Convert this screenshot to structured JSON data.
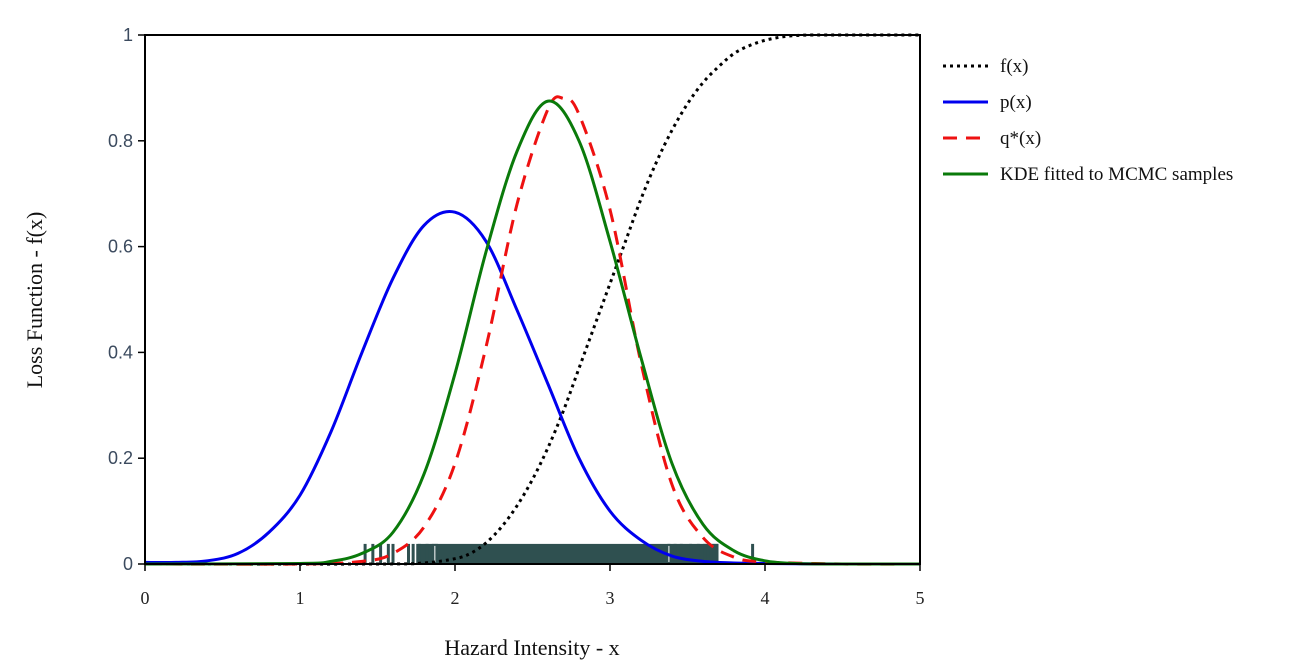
{
  "chart_data": {
    "type": "line",
    "title": "",
    "xlabel": "Hazard Intensity - x",
    "ylabel": "Loss Function - f(x)",
    "xlim": [
      0,
      5
    ],
    "ylim": [
      0,
      1
    ],
    "xticks": [
      "0",
      "1",
      "2",
      "3",
      "4",
      "5"
    ],
    "yticks": [
      "0",
      "0.2",
      "0.4",
      "0.6",
      "0.8",
      "1"
    ],
    "grid": false,
    "legend_position": "right",
    "series": [
      {
        "name": "f(x)",
        "color": "#000000",
        "style": "dotted",
        "x": [
          0,
          1.5,
          1.8,
          2.0,
          2.1,
          2.2,
          2.3,
          2.4,
          2.5,
          2.6,
          2.7,
          2.8,
          2.9,
          3.0,
          3.1,
          3.2,
          3.3,
          3.4,
          3.5,
          3.6,
          3.7,
          3.8,
          3.9,
          4.0,
          4.1,
          4.2,
          4.3,
          4.5,
          5.0
        ],
        "y": [
          0,
          0,
          0.002,
          0.01,
          0.02,
          0.04,
          0.07,
          0.11,
          0.16,
          0.22,
          0.29,
          0.37,
          0.45,
          0.53,
          0.61,
          0.69,
          0.76,
          0.82,
          0.87,
          0.91,
          0.94,
          0.965,
          0.98,
          0.99,
          0.996,
          0.999,
          1.0,
          1.0,
          1.0
        ]
      },
      {
        "name": "p(x)",
        "color": "#0000ee",
        "style": "solid",
        "x": [
          0,
          0.2,
          0.4,
          0.6,
          0.8,
          1.0,
          1.2,
          1.4,
          1.6,
          1.8,
          2.0,
          2.2,
          2.4,
          2.6,
          2.8,
          3.0,
          3.2,
          3.4,
          3.6,
          3.8,
          4.0,
          4.5,
          5.0
        ],
        "y": [
          0.003,
          0.003,
          0.006,
          0.02,
          0.06,
          0.13,
          0.25,
          0.4,
          0.54,
          0.64,
          0.665,
          0.61,
          0.48,
          0.34,
          0.2,
          0.1,
          0.045,
          0.015,
          0.005,
          0.002,
          0.001,
          0,
          0
        ]
      },
      {
        "name": "q*(x)",
        "color": "#ee1111",
        "style": "dashed",
        "x": [
          0,
          1.0,
          1.4,
          1.6,
          1.8,
          2.0,
          2.2,
          2.4,
          2.6,
          2.7,
          2.8,
          3.0,
          3.2,
          3.4,
          3.6,
          3.8,
          4.0,
          4.5,
          5.0
        ],
        "y": [
          0,
          0,
          0.005,
          0.02,
          0.07,
          0.19,
          0.41,
          0.68,
          0.86,
          0.88,
          0.85,
          0.67,
          0.38,
          0.15,
          0.05,
          0.013,
          0.004,
          0,
          0
        ]
      },
      {
        "name": "KDE fitted to MCMC samples",
        "color": "#0a7a0a",
        "style": "solid",
        "x": [
          0,
          1.0,
          1.2,
          1.4,
          1.6,
          1.8,
          2.0,
          2.2,
          2.4,
          2.6,
          2.8,
          3.0,
          3.2,
          3.4,
          3.6,
          3.8,
          4.0,
          4.2,
          4.5,
          5.0
        ],
        "y": [
          0,
          0.001,
          0.005,
          0.02,
          0.06,
          0.17,
          0.36,
          0.59,
          0.78,
          0.875,
          0.8,
          0.61,
          0.39,
          0.19,
          0.075,
          0.025,
          0.006,
          0.001,
          0,
          0
        ]
      }
    ],
    "rug": {
      "color": "#2f5050",
      "band": [
        1.75,
        3.7
      ],
      "height": 0.038,
      "ticks": [
        1.42,
        1.47,
        1.52,
        1.57,
        1.6,
        1.7,
        1.73,
        1.77,
        1.82,
        1.86,
        1.88,
        3.38,
        3.42,
        3.46,
        3.52,
        3.57,
        3.61,
        3.65,
        3.67,
        3.69,
        3.92
      ]
    }
  }
}
